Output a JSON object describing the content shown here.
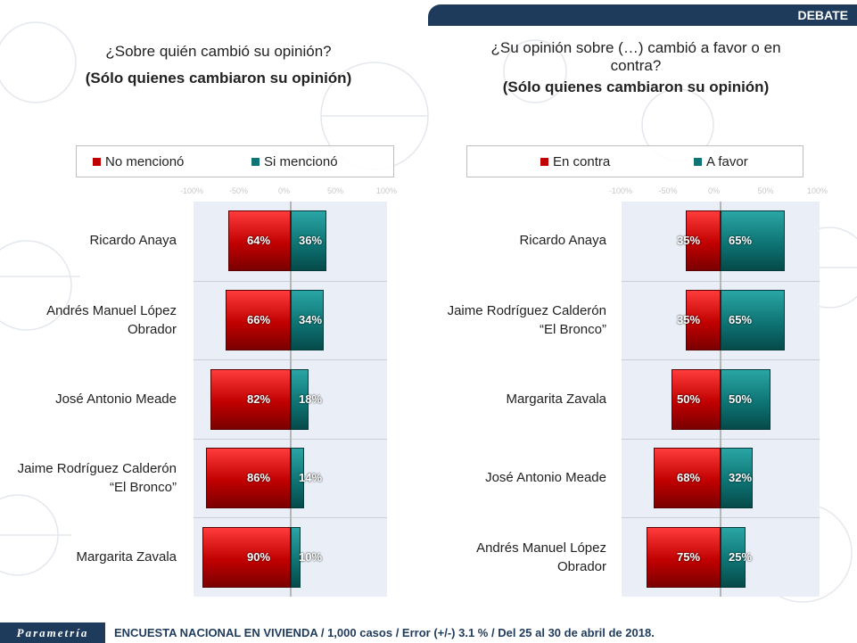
{
  "header": {
    "tag": "DEBATE"
  },
  "footer": {
    "brand": "Parametría",
    "note": "ENCUESTA NACIONAL EN VIVIENDA / 1,000 casos / Error (+/-) 3.1 % / Del 25 al 30 de abril de 2018."
  },
  "colors": {
    "negative": "#c00000",
    "positive": "#0e7474",
    "header": "#1f3b5c"
  },
  "left": {
    "title": "¿Sobre quién cambió su opinión?",
    "subtitle": "(Sólo quienes cambiaron su opinión)",
    "legend_neg": "No mencionó",
    "legend_pos": "Si mencionó"
  },
  "right": {
    "title": "¿Su opinión sobre (…) cambió a favor o en contra?",
    "subtitle": "(Sólo quienes cambiaron su opinión)",
    "legend_neg": "En contra",
    "legend_pos": "A favor"
  },
  "chart_data": [
    {
      "type": "bar",
      "orientation": "horizontal-diverging",
      "title": "¿Sobre quién cambió su opinión?",
      "subtitle": "(Sólo quienes cambiaron su opinión)",
      "categories": [
        "Ricardo Anaya",
        "Andrés Manuel López Obrador",
        "José Antonio Meade",
        "Jaime Rodríguez Calderón “El Bronco”",
        "Margarita Zavala"
      ],
      "series": [
        {
          "name": "No mencionó",
          "values": [
            -64,
            -66,
            -82,
            -86,
            -90
          ],
          "labels": [
            "64%",
            "66%",
            "82%",
            "86%",
            "90%"
          ]
        },
        {
          "name": "Si mencionó",
          "values": [
            36,
            34,
            18,
            14,
            10
          ],
          "labels": [
            "36%",
            "34%",
            "18%",
            "14%",
            "10%"
          ]
        }
      ],
      "xlim": [
        -100,
        100
      ],
      "ticks": [
        "-100%",
        "-50%",
        "0%",
        "50%",
        "100%"
      ],
      "legend": "top"
    },
    {
      "type": "bar",
      "orientation": "horizontal-diverging",
      "title": "¿Su opinión sobre (…) cambió a favor o en contra?",
      "subtitle": "(Sólo quienes cambiaron su opinión)",
      "categories": [
        "Ricardo Anaya",
        "Jaime Rodríguez Calderón “El Bronco”",
        "Margarita Zavala",
        "José Antonio Meade",
        "Andrés Manuel López Obrador"
      ],
      "series": [
        {
          "name": "En contra",
          "values": [
            -35,
            -35,
            -50,
            -68,
            -75
          ],
          "labels": [
            "35%",
            "35%",
            "50%",
            "68%",
            "75%"
          ]
        },
        {
          "name": "A favor",
          "values": [
            65,
            65,
            50,
            32,
            25
          ],
          "labels": [
            "65%",
            "65%",
            "50%",
            "32%",
            "25%"
          ]
        }
      ],
      "xlim": [
        -100,
        100
      ],
      "ticks": [
        "-100%",
        "-50%",
        "0%",
        "50%",
        "100%"
      ],
      "legend": "top"
    }
  ]
}
